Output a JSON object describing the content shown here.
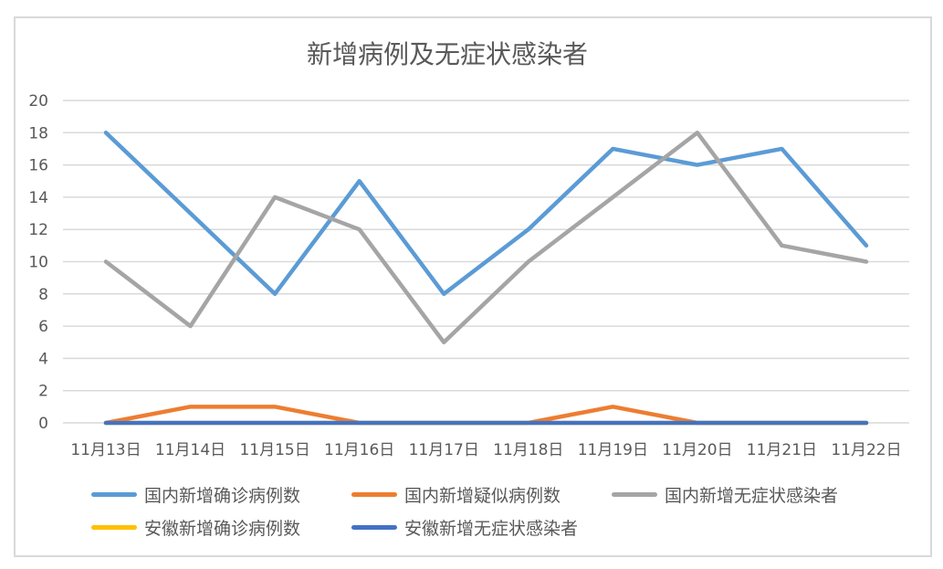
{
  "chart_data": {
    "type": "line",
    "title": "新增病例及无症状感染者",
    "xlabel": "",
    "ylabel": "",
    "ylim": [
      0,
      20
    ],
    "yticks": [
      0,
      2,
      4,
      6,
      8,
      10,
      12,
      14,
      16,
      18,
      20
    ],
    "grid": true,
    "legend_position": "bottom",
    "categories": [
      "11月13日",
      "11月14日",
      "11月15日",
      "11月16日",
      "11月17日",
      "11月18日",
      "11月19日",
      "11月20日",
      "11月21日",
      "11月22日"
    ],
    "series": [
      {
        "name": "国内新增确诊病例数",
        "color": "#5b9bd5",
        "values": [
          18,
          13,
          8,
          15,
          8,
          12,
          17,
          16,
          17,
          11
        ]
      },
      {
        "name": "国内新增疑似病例数",
        "color": "#ed7d31",
        "values": [
          0,
          1,
          1,
          0,
          0,
          0,
          1,
          0,
          0,
          0
        ]
      },
      {
        "name": "国内新增无症状感染者",
        "color": "#a5a5a5",
        "values": [
          10,
          6,
          14,
          12,
          5,
          10,
          14,
          18,
          11,
          10
        ]
      },
      {
        "name": "安徽新增确诊病例数",
        "color": "#ffc000",
        "values": [
          0,
          0,
          0,
          0,
          0,
          0,
          0,
          0,
          0,
          0
        ]
      },
      {
        "name": "安徽新增无症状感染者",
        "color": "#4472c4",
        "values": [
          0,
          0,
          0,
          0,
          0,
          0,
          0,
          0,
          0,
          0
        ]
      }
    ]
  },
  "colors": {
    "gridline": "#d9d9d9",
    "axis_text": "#595959",
    "border": "#d9d9d9"
  }
}
